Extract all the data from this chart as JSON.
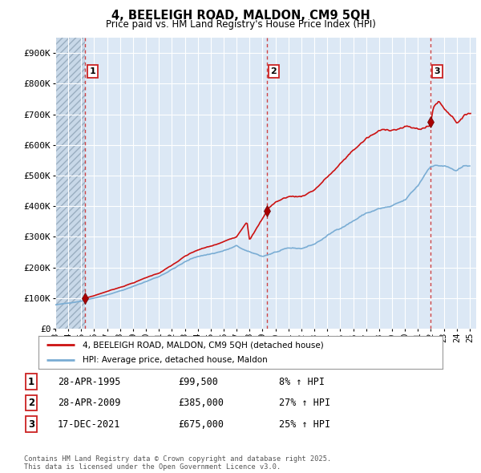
{
  "title": "4, BEELEIGH ROAD, MALDON, CM9 5QH",
  "subtitle": "Price paid vs. HM Land Registry's House Price Index (HPI)",
  "ylim": [
    0,
    950000
  ],
  "yticks": [
    0,
    100000,
    200000,
    300000,
    400000,
    500000,
    600000,
    700000,
    800000,
    900000
  ],
  "ytick_labels": [
    "£0",
    "£100K",
    "£200K",
    "£300K",
    "£400K",
    "£500K",
    "£600K",
    "£700K",
    "£800K",
    "£900K"
  ],
  "bg_color": "#dce8f5",
  "hatch_color": "#c0cce0",
  "grid_color": "#ffffff",
  "purchases": [
    {
      "year": 1995.32,
      "price": 99500,
      "label": "1"
    },
    {
      "year": 2009.32,
      "price": 385000,
      "label": "2"
    },
    {
      "year": 2021.96,
      "price": 675000,
      "label": "3"
    }
  ],
  "purchase_labels_info": [
    {
      "num": "1",
      "date": "28-APR-1995",
      "price": "£99,500",
      "hpi": "8% ↑ HPI"
    },
    {
      "num": "2",
      "date": "28-APR-2009",
      "price": "£385,000",
      "hpi": "27% ↑ HPI"
    },
    {
      "num": "3",
      "date": "17-DEC-2021",
      "price": "£675,000",
      "hpi": "25% ↑ HPI"
    }
  ],
  "legend_line1": "4, BEELEIGH ROAD, MALDON, CM9 5QH (detached house)",
  "legend_line2": "HPI: Average price, detached house, Maldon",
  "footer": "Contains HM Land Registry data © Crown copyright and database right 2025.\nThis data is licensed under the Open Government Licence v3.0.",
  "hpi_line_color": "#7aadd4",
  "price_line_color": "#cc1111",
  "vline_color": "#cc3333",
  "marker_color": "#aa0000",
  "xlim_start": 1993.0,
  "xlim_end": 2025.5,
  "hatch_end": 1995.32
}
